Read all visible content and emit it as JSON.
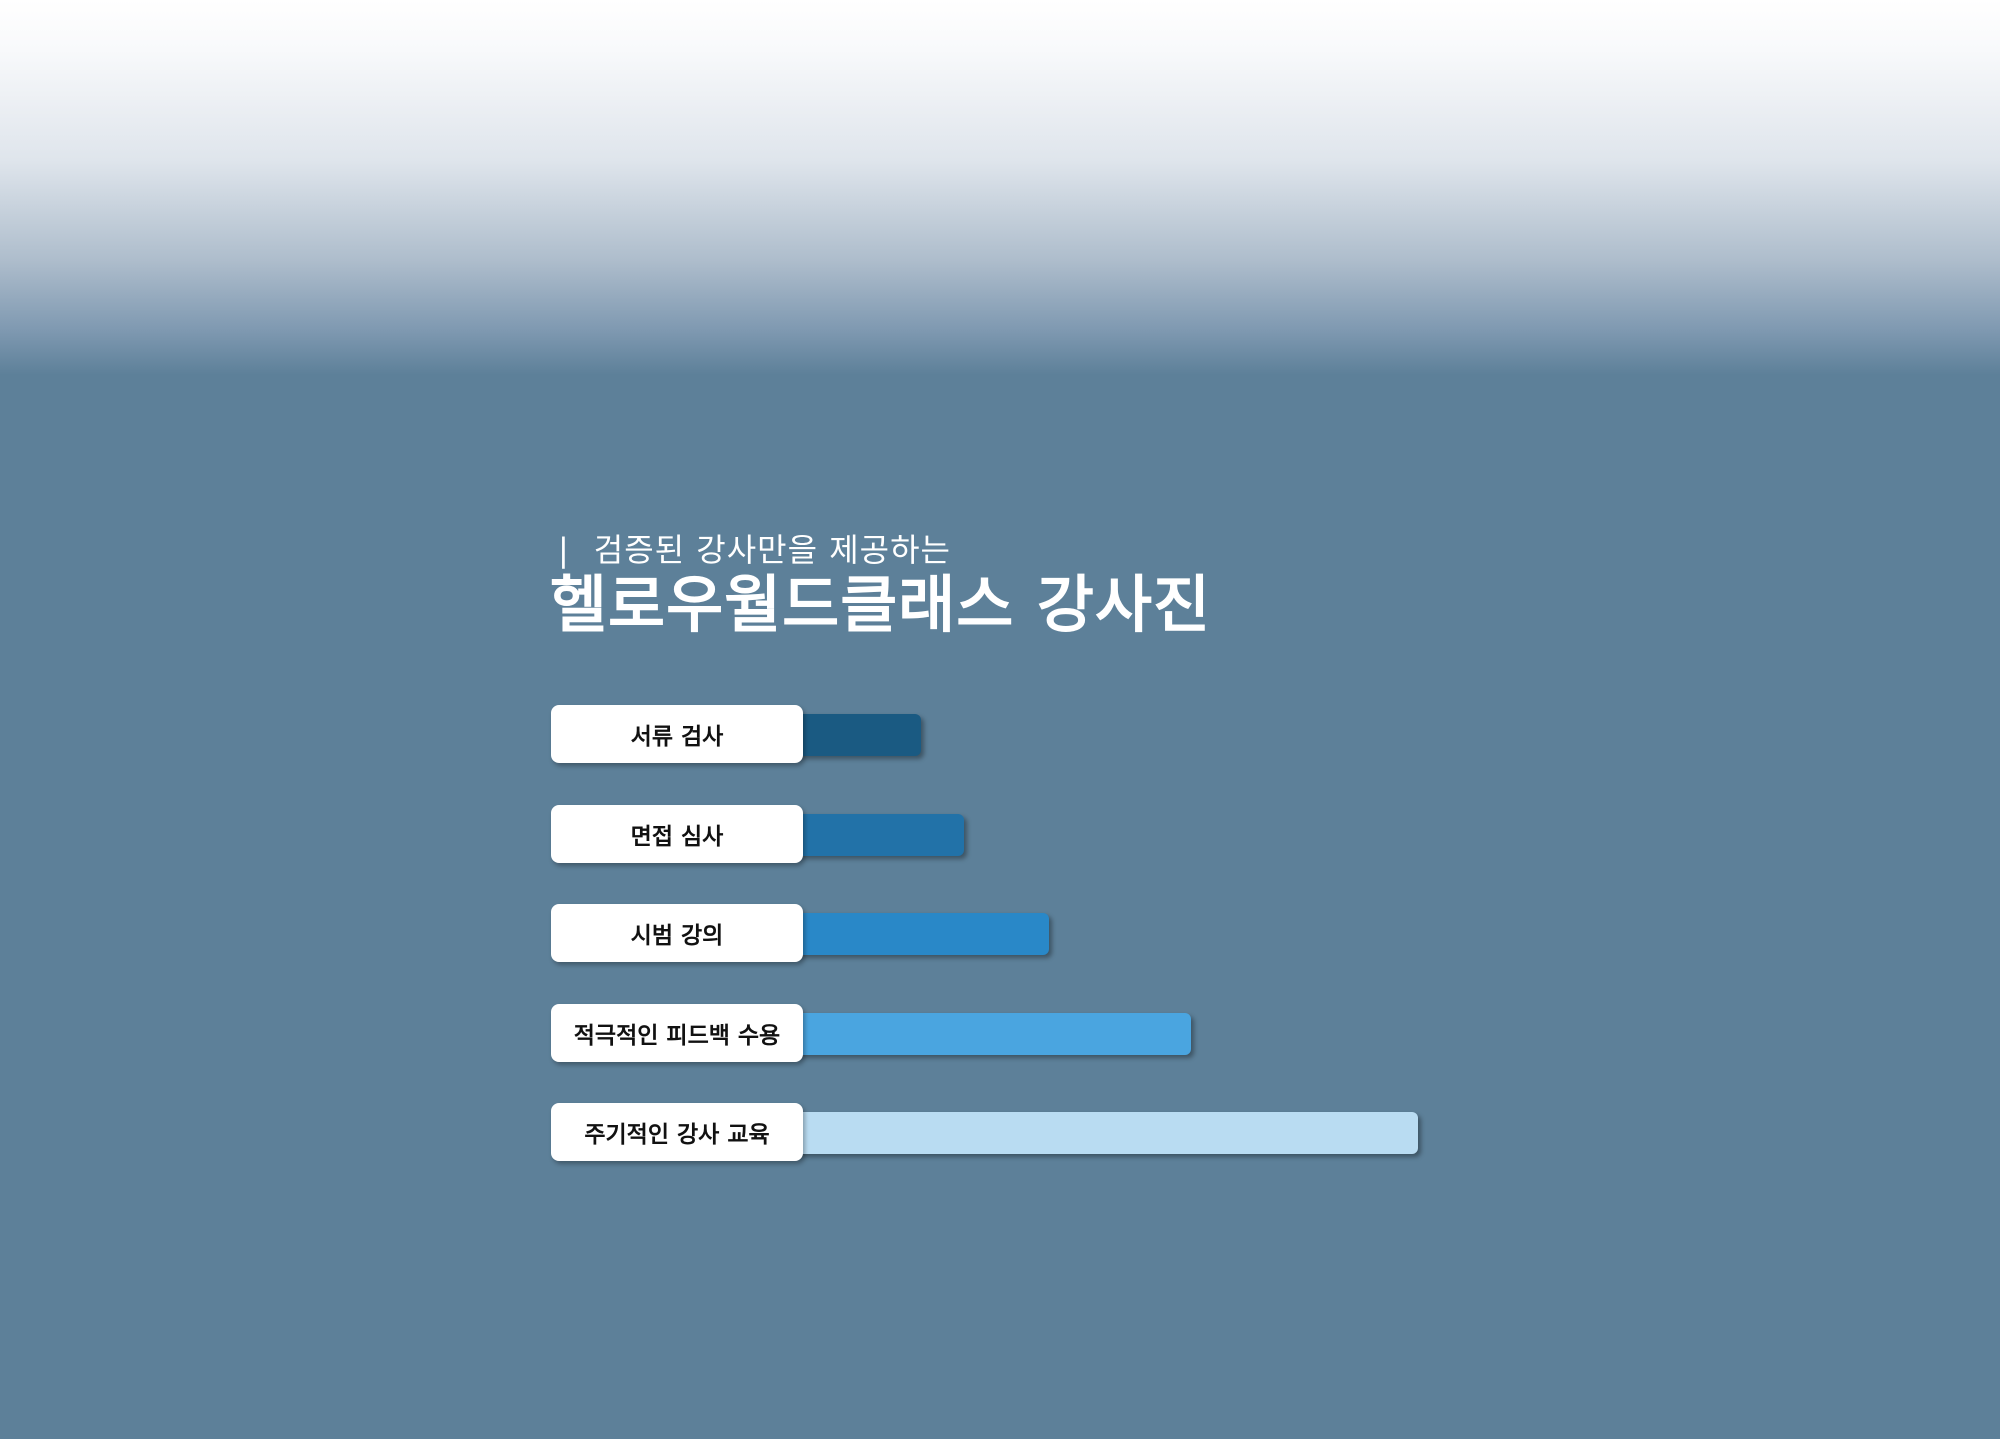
{
  "header": {
    "subtitle_mark": "|",
    "subtitle": "검증된 강사만을 제공하는",
    "title": "헬로우월드클래스 강사진"
  },
  "chart_data": {
    "type": "bar",
    "orientation": "horizontal",
    "categories": [
      "서류 검사",
      "면접 심사",
      "시범 강의",
      "적극적인 피드백 수용",
      "주기적인 강사 교육"
    ],
    "values": [
      1,
      1.3,
      1.9,
      2.9,
      4.5
    ],
    "value_scale_note": "",
    "colors": [
      "#1a5a82",
      "#2272a8",
      "#2988c8",
      "#4aa5e0",
      "#b9dcf2"
    ],
    "xlim": [
      0,
      4.5
    ],
    "grid": false,
    "title": "",
    "xlabel": "",
    "ylabel": ""
  }
}
